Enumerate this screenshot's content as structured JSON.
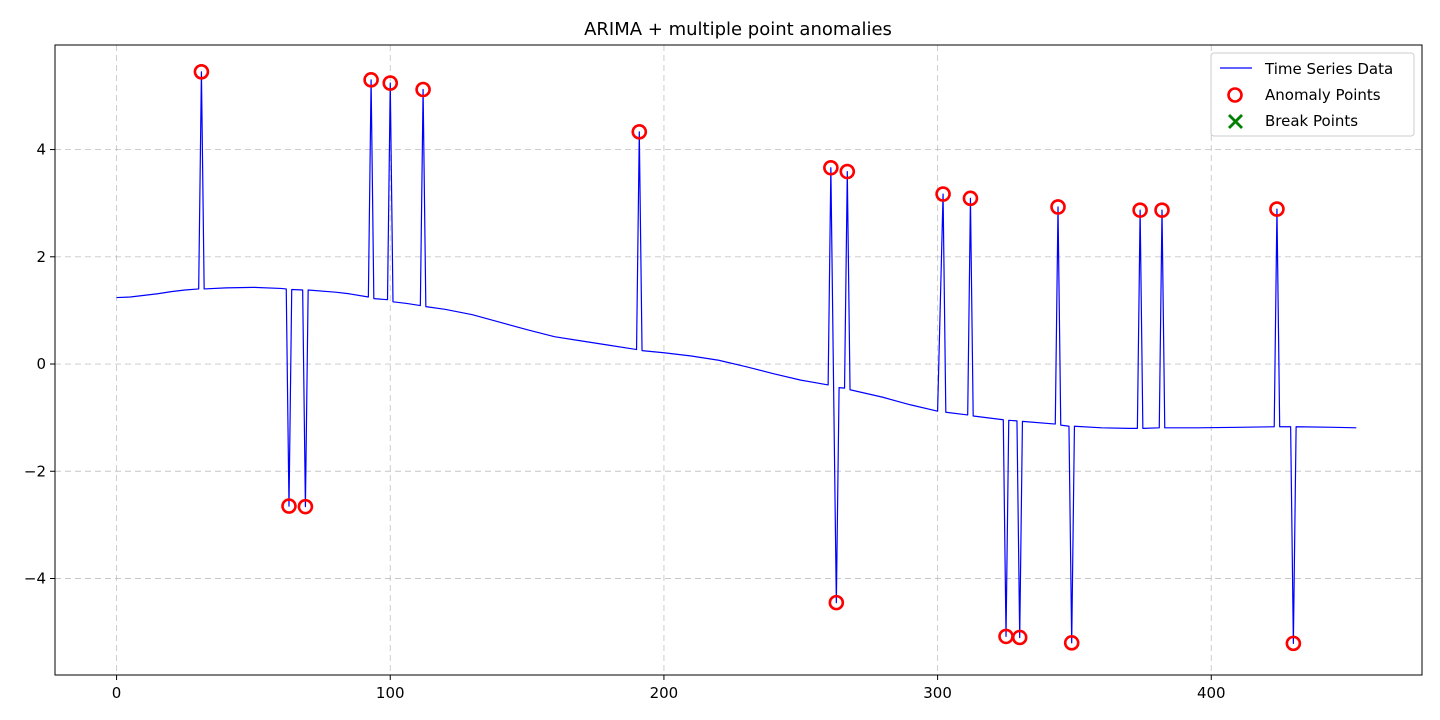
{
  "chart_data": {
    "type": "line",
    "title": "ARIMA + multiple point anomalies",
    "xlabel": "",
    "ylabel": "",
    "xlim": [
      -22.5,
      477
    ],
    "ylim": [
      -5.8,
      5.95
    ],
    "xticks": [
      0,
      100,
      200,
      300,
      400
    ],
    "yticks": [
      -4,
      -2,
      0,
      2,
      4
    ],
    "grid": true,
    "legend_position": "top-right",
    "legend": [
      "Time Series Data",
      "Anomaly Points",
      "Break Points"
    ],
    "colors": {
      "line": "#0000ff",
      "anomaly": "#ff0000",
      "break": "#008000"
    },
    "series": [
      {
        "name": "Time Series Data",
        "kind": "line",
        "points": [
          [
            0,
            1.24
          ],
          [
            5,
            1.25
          ],
          [
            10,
            1.28
          ],
          [
            15,
            1.31
          ],
          [
            20,
            1.35
          ],
          [
            25,
            1.38
          ],
          [
            30,
            1.4
          ],
          [
            31,
            5.45
          ],
          [
            32,
            1.4
          ],
          [
            40,
            1.42
          ],
          [
            50,
            1.43
          ],
          [
            60,
            1.41
          ],
          [
            62,
            1.4
          ],
          [
            63,
            -2.65
          ],
          [
            64,
            1.39
          ],
          [
            68,
            1.38
          ],
          [
            69,
            -2.66
          ],
          [
            70,
            1.38
          ],
          [
            80,
            1.34
          ],
          [
            85,
            1.31
          ],
          [
            92,
            1.25
          ],
          [
            93,
            5.3
          ],
          [
            94,
            1.22
          ],
          [
            99,
            1.2
          ],
          [
            100,
            5.24
          ],
          [
            101,
            1.16
          ],
          [
            106,
            1.13
          ],
          [
            111,
            1.09
          ],
          [
            112,
            5.12
          ],
          [
            113,
            1.07
          ],
          [
            120,
            1.02
          ],
          [
            130,
            0.92
          ],
          [
            140,
            0.78
          ],
          [
            150,
            0.64
          ],
          [
            160,
            0.51
          ],
          [
            170,
            0.43
          ],
          [
            180,
            0.35
          ],
          [
            190,
            0.27
          ],
          [
            191,
            4.33
          ],
          [
            192,
            0.25
          ],
          [
            200,
            0.21
          ],
          [
            210,
            0.15
          ],
          [
            220,
            0.07
          ],
          [
            230,
            -0.05
          ],
          [
            240,
            -0.18
          ],
          [
            250,
            -0.3
          ],
          [
            260,
            -0.39
          ],
          [
            261,
            3.66
          ],
          [
            262,
            -0.42
          ],
          [
            263,
            -4.45
          ],
          [
            264,
            -0.44
          ],
          [
            266,
            -0.45
          ],
          [
            267,
            3.59
          ],
          [
            268,
            -0.48
          ],
          [
            280,
            -0.62
          ],
          [
            290,
            -0.76
          ],
          [
            300,
            -0.88
          ],
          [
            302,
            3.17
          ],
          [
            303,
            -0.9
          ],
          [
            311,
            -0.95
          ],
          [
            312,
            3.09
          ],
          [
            313,
            -0.97
          ],
          [
            324,
            -1.04
          ],
          [
            325,
            -5.08
          ],
          [
            326,
            -1.05
          ],
          [
            329,
            -1.06
          ],
          [
            330,
            -5.1
          ],
          [
            331,
            -1.07
          ],
          [
            343,
            -1.12
          ],
          [
            344,
            2.93
          ],
          [
            345,
            -1.14
          ],
          [
            348,
            -1.16
          ],
          [
            349,
            -5.2
          ],
          [
            350,
            -1.16
          ],
          [
            360,
            -1.19
          ],
          [
            370,
            -1.2
          ],
          [
            373,
            -1.2
          ],
          [
            374,
            2.87
          ],
          [
            375,
            -1.2
          ],
          [
            381,
            -1.19
          ],
          [
            382,
            2.87
          ],
          [
            383,
            -1.19
          ],
          [
            395,
            -1.19
          ],
          [
            410,
            -1.18
          ],
          [
            423,
            -1.17
          ],
          [
            424,
            2.89
          ],
          [
            425,
            -1.17
          ],
          [
            429,
            -1.17
          ],
          [
            430,
            -5.21
          ],
          [
            431,
            -1.17
          ],
          [
            445,
            -1.18
          ],
          [
            453,
            -1.19
          ]
        ]
      },
      {
        "name": "Anomaly Points",
        "kind": "scatter",
        "points": [
          [
            31,
            5.45
          ],
          [
            63,
            -2.65
          ],
          [
            69,
            -2.66
          ],
          [
            93,
            5.3
          ],
          [
            100,
            5.24
          ],
          [
            112,
            5.12
          ],
          [
            191,
            4.33
          ],
          [
            261,
            3.66
          ],
          [
            263,
            -4.45
          ],
          [
            267,
            3.59
          ],
          [
            302,
            3.17
          ],
          [
            312,
            3.09
          ],
          [
            325,
            -5.08
          ],
          [
            330,
            -5.1
          ],
          [
            344,
            2.93
          ],
          [
            349,
            -5.2
          ],
          [
            374,
            2.87
          ],
          [
            382,
            2.87
          ],
          [
            424,
            2.89
          ],
          [
            430,
            -5.21
          ]
        ]
      },
      {
        "name": "Break Points",
        "kind": "scatter",
        "points": []
      }
    ]
  }
}
